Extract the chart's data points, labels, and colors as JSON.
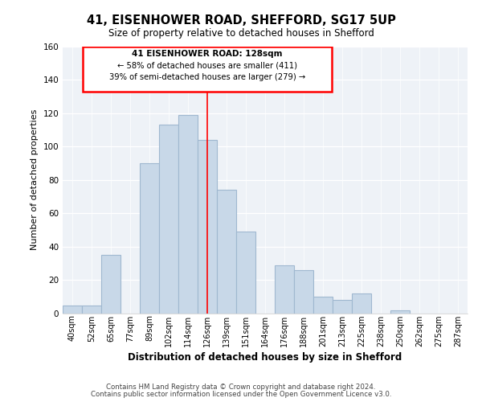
{
  "title1": "41, EISENHOWER ROAD, SHEFFORD, SG17 5UP",
  "title2": "Size of property relative to detached houses in Shefford",
  "xlabel": "Distribution of detached houses by size in Shefford",
  "ylabel": "Number of detached properties",
  "footer1": "Contains HM Land Registry data © Crown copyright and database right 2024.",
  "footer2": "Contains public sector information licensed under the Open Government Licence v3.0.",
  "bar_labels": [
    "40sqm",
    "52sqm",
    "65sqm",
    "77sqm",
    "89sqm",
    "102sqm",
    "114sqm",
    "126sqm",
    "139sqm",
    "151sqm",
    "164sqm",
    "176sqm",
    "188sqm",
    "201sqm",
    "213sqm",
    "225sqm",
    "238sqm",
    "250sqm",
    "262sqm",
    "275sqm",
    "287sqm"
  ],
  "bar_values": [
    5,
    5,
    35,
    0,
    90,
    113,
    119,
    104,
    74,
    49,
    0,
    29,
    26,
    10,
    8,
    12,
    0,
    2,
    0,
    0,
    0
  ],
  "bar_color": "#c8d8e8",
  "bar_edge_color": "#a0b8d0",
  "reference_line_x": 7,
  "reference_line_color": "red",
  "ylim": [
    0,
    160
  ],
  "yticks": [
    0,
    20,
    40,
    60,
    80,
    100,
    120,
    140,
    160
  ],
  "annotation_title": "41 EISENHOWER ROAD: 128sqm",
  "annotation_line1": "← 58% of detached houses are smaller (411)",
  "annotation_line2": "39% of semi-detached houses are larger (279) →",
  "bg_color": "#eef2f7"
}
